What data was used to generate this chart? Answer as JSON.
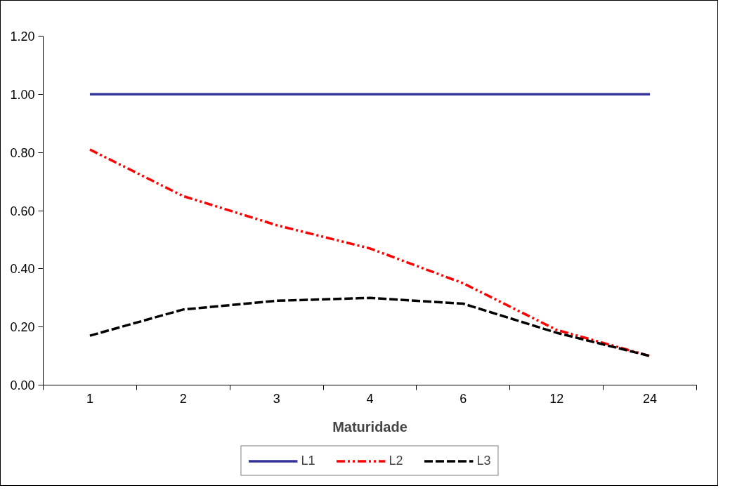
{
  "chart_data": {
    "type": "line",
    "xlabel": "Maturidade",
    "categories": [
      "1",
      "2",
      "3",
      "4",
      "6",
      "12",
      "24"
    ],
    "series": [
      {
        "name": "L1",
        "color": "#333399",
        "line_style": "solid",
        "values": [
          1.0,
          1.0,
          1.0,
          1.0,
          1.0,
          1.0,
          1.0
        ]
      },
      {
        "name": "L2",
        "color": "#ff0000",
        "line_style": "dashdotdot",
        "values": [
          0.81,
          0.65,
          0.55,
          0.47,
          0.35,
          0.19,
          0.1
        ]
      },
      {
        "name": "L3",
        "color": "#000000",
        "line_style": "dashed",
        "values": [
          0.17,
          0.26,
          0.29,
          0.3,
          0.28,
          0.18,
          0.1
        ]
      }
    ],
    "ylim": [
      0,
      1.2
    ],
    "yticks": [
      {
        "value": 0,
        "label": "0.00"
      },
      {
        "value": 0.2,
        "label": "0.20"
      },
      {
        "value": 0.4,
        "label": "0.40"
      },
      {
        "value": 0.6,
        "label": "0.60"
      },
      {
        "value": 0.8,
        "label": "0.80"
      },
      {
        "value": 1.0,
        "label": "1.00"
      },
      {
        "value": 1.2,
        "label": "1.20"
      }
    ],
    "grid": false,
    "legend": "bottom",
    "marker": "none"
  }
}
